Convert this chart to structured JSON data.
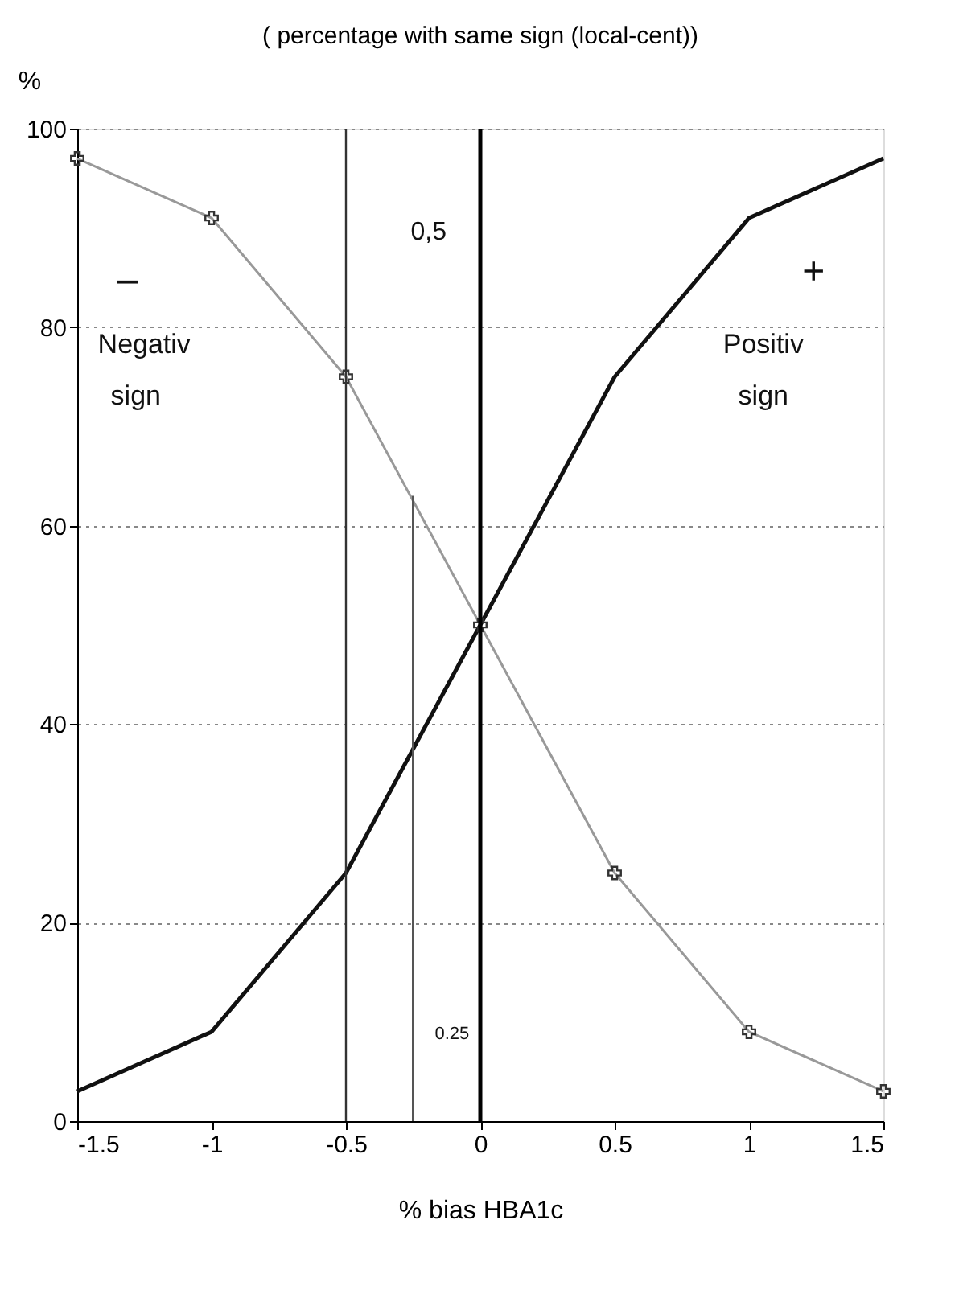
{
  "chart_data": {
    "type": "line",
    "title": "( percentage with same sign (local-cent))",
    "xlabel": "% bias HBA1c",
    "ylabel": "%",
    "x": [
      -1.5,
      -1,
      -0.5,
      0,
      0.5,
      1,
      1.5
    ],
    "series": [
      {
        "color": "#111111",
        "values": [
          3,
          9,
          25,
          50,
          75,
          91,
          97
        ],
        "marker": "none"
      },
      {
        "color": "#999999",
        "values": [
          97,
          91,
          75,
          50,
          25,
          9,
          3
        ],
        "marker": "cross"
      },
      {
        "type": "line",
        "color": "#555555",
        "x": [
          -0.25,
          -0.25
        ],
        "values": [
          0,
          63
        ],
        "marker": "none"
      }
    ],
    "ref_lines": [
      {
        "axis": "x",
        "value": -0.5,
        "color": "#333333"
      },
      {
        "axis": "x",
        "value": 0,
        "color": "#000000"
      }
    ],
    "annotations": [
      "0,5",
      "0.25",
      "−",
      "Negativ",
      "sign",
      "+",
      "Positiv",
      "sign"
    ],
    "xlim": [
      -1.5,
      1.5
    ],
    "xticks": [
      -1.5,
      -1,
      -0.5,
      0,
      0.5,
      1,
      1.5
    ],
    "ylim": [
      0,
      100
    ],
    "yticks": [
      0,
      20,
      40,
      60,
      80,
      100
    ],
    "grid": "y"
  }
}
